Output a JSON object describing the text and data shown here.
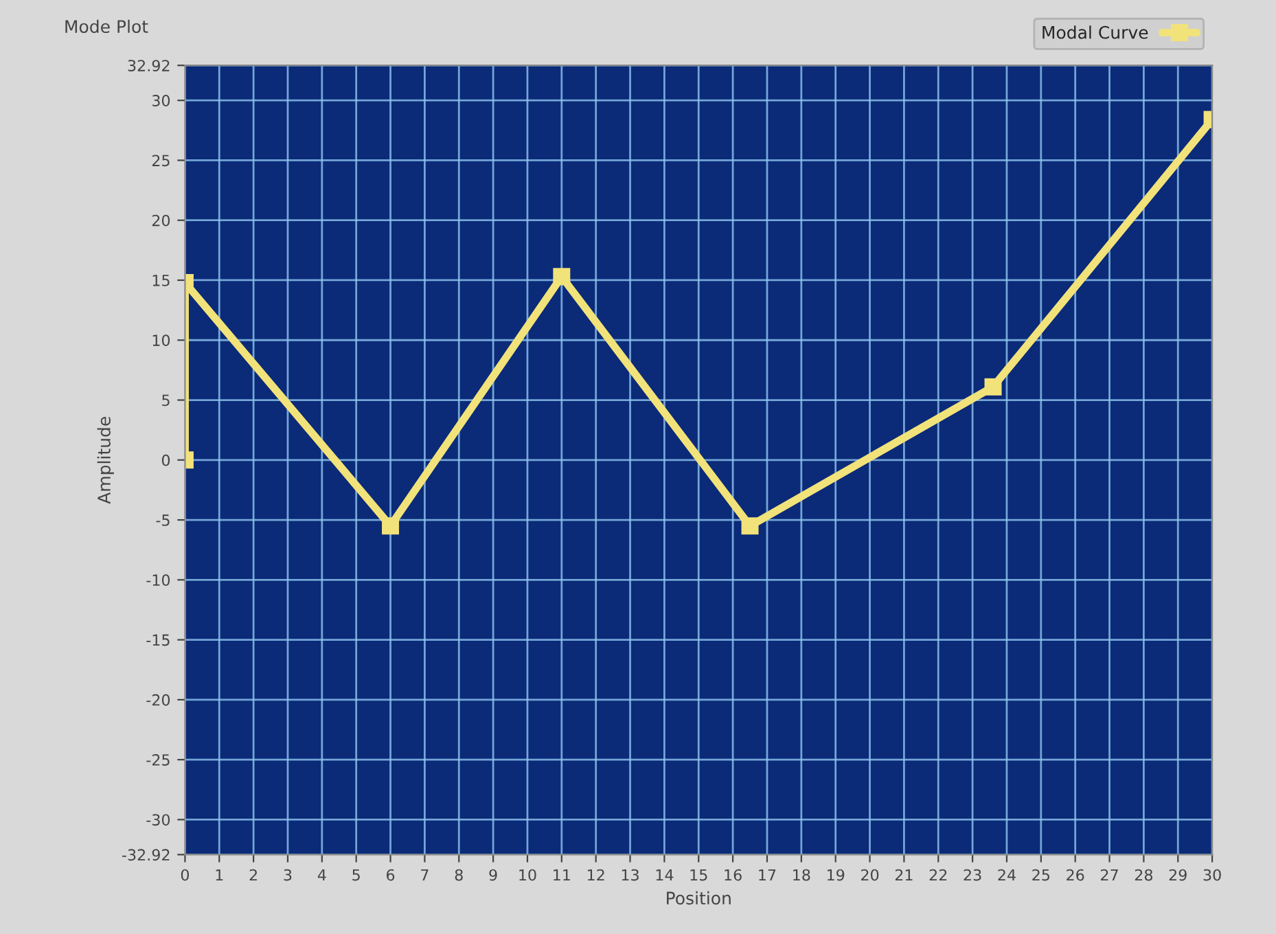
{
  "chart_data": {
    "type": "line",
    "title": "Mode Plot",
    "xlabel": "Position",
    "ylabel": "Amplitude",
    "x": [
      0,
      0,
      6,
      11,
      16.5,
      23.6,
      30
    ],
    "series": [
      {
        "name": "Modal Curve",
        "color": "#f2e27a",
        "values": [
          0,
          14.8,
          -5.5,
          15.3,
          -5.5,
          6.1,
          28.4
        ]
      }
    ],
    "xlim": [
      0,
      30
    ],
    "xticks": [
      0,
      1,
      2,
      3,
      4,
      5,
      6,
      7,
      8,
      9,
      10,
      11,
      12,
      13,
      14,
      15,
      16,
      17,
      18,
      19,
      20,
      21,
      22,
      23,
      24,
      25,
      26,
      27,
      28,
      29,
      30
    ],
    "ylim": [
      -32.92,
      32.92
    ],
    "yticks": [
      -32.92,
      -30,
      -25,
      -20,
      -15,
      -10,
      -5,
      0,
      5,
      10,
      15,
      20,
      25,
      30,
      32.92
    ],
    "grid": true,
    "legend": "top right",
    "marker": "square",
    "line_style": "solid"
  }
}
